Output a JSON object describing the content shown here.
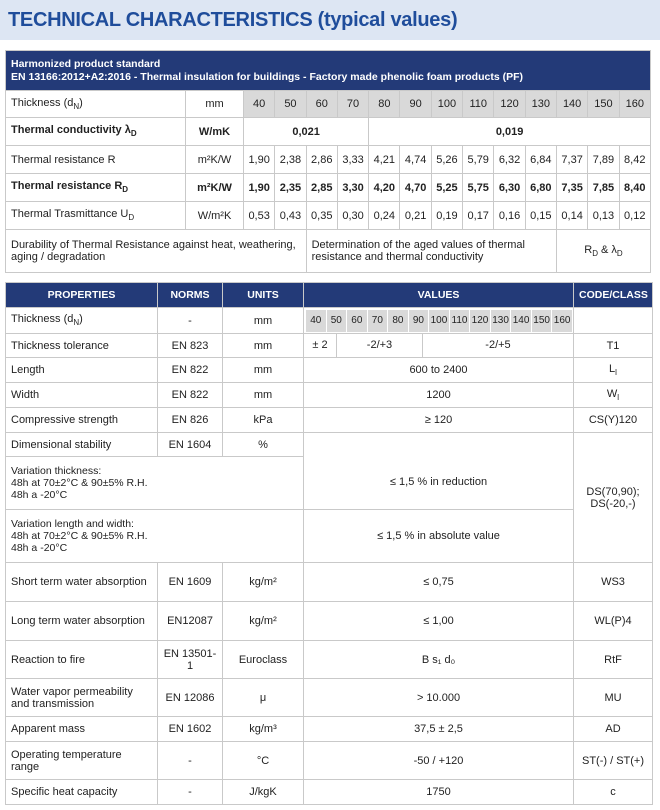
{
  "header": {
    "title": "TECHNICAL CHARACTERISTICS (typical values)"
  },
  "standard": {
    "line1": "Harmonized product standard",
    "line2": "EN 13166:2012+A2:2016 - Thermal insulation for buildings - Factory made phenolic foam products (PF)"
  },
  "thermal_table": {
    "thickness": {
      "label": [
        "Thickness (d",
        "N",
        ")"
      ],
      "unit": "mm",
      "values": [
        "40",
        "50",
        "60",
        "70",
        "80",
        "90",
        "100",
        "110",
        "120",
        "130",
        "140",
        "150",
        "160"
      ]
    },
    "conductivity": {
      "label": [
        "Thermal conductivity λ",
        "D"
      ],
      "unit": "W/mK",
      "values": [
        "0,021",
        "0,019"
      ]
    },
    "resistance": {
      "label": "Thermal resistance R",
      "unit": "m²K/W",
      "values": [
        "1,90",
        "2,38",
        "2,86",
        "3,33",
        "4,21",
        "4,74",
        "5,26",
        "5,79",
        "6,32",
        "6,84",
        "7,37",
        "7,89",
        "8,42"
      ]
    },
    "resistance_d": {
      "label": [
        "Thermal resistance R",
        "D"
      ],
      "unit": "m²K/W",
      "values": [
        "1,90",
        "2,35",
        "2,85",
        "3,30",
        "4,20",
        "4,70",
        "5,25",
        "5,75",
        "6,30",
        "6,80",
        "7,35",
        "7,85",
        "8,40"
      ]
    },
    "transmittance": {
      "label": [
        "Thermal Trasmittance U",
        "D"
      ],
      "unit": "W/m²K",
      "values": [
        "0,53",
        "0,43",
        "0,35",
        "0,30",
        "0,24",
        "0,21",
        "0,19",
        "0,17",
        "0,16",
        "0,15",
        "0,14",
        "0,13",
        "0,12"
      ]
    },
    "durability": {
      "label": "Durability of Thermal Resistance against heat, weathering, aging / degradation",
      "method": "Determination of the aged values of thermal resistance and thermal conductivity",
      "symbol": [
        "R",
        "D",
        " & λ",
        "D"
      ]
    }
  },
  "properties_table": {
    "columns": [
      "PROPERTIES",
      "NORMS",
      "UNITS",
      "VALUES",
      "CODE/CLASS"
    ],
    "rows": [
      {
        "property": [
          "Thickness (d",
          "N",
          ")"
        ],
        "norm": "-",
        "unit": "mm",
        "values": [
          "40",
          "50",
          "60",
          "70",
          "80",
          "90",
          "100",
          "110",
          "120",
          "130",
          "140",
          "150",
          "160"
        ]
      },
      {
        "property": "Thickness tolerance",
        "norm": "EN 823",
        "unit": "mm",
        "values": [
          "± 2",
          "-2/+3",
          "-2/+5"
        ],
        "code": "T1"
      },
      {
        "property": "Length",
        "norm": "EN 822",
        "unit": "mm",
        "value": "600 to 2400",
        "code": [
          "L",
          "l"
        ]
      },
      {
        "property": "Width",
        "norm": "EN 822",
        "unit": "mm",
        "value": "1200",
        "code": [
          "W",
          "l"
        ]
      },
      {
        "property": "Compressive strength",
        "norm": "EN 826",
        "unit": "kPa",
        "value": "≥ 120",
        "code": "CS(Y)120"
      },
      {
        "property": "Dimensional stability",
        "norm": "EN 1604",
        "unit": "%",
        "code": [
          "DS(70,90);",
          "DS(-20,-)"
        ]
      },
      {
        "property": [
          "Variation thickness:",
          "48h at 70±2°C & 90±5% R.H.",
          "48h a -20°C"
        ],
        "value": "≤ 1,5 % in reduction"
      },
      {
        "property": [
          "Variation length and width:",
          "48h at 70±2°C & 90±5% R.H.",
          "48h a -20°C"
        ],
        "value": "≤ 1,5 % in absolute value"
      },
      {
        "property": "Short term water absorption",
        "norm": "EN 1609",
        "unit": "kg/m²",
        "value": "≤ 0,75",
        "code": "WS3"
      },
      {
        "property": "Long term water absorption",
        "norm": "EN12087",
        "unit": "kg/m²",
        "value": "≤ 1,00",
        "code": "WL(P)4"
      },
      {
        "property": "Reaction to fire",
        "norm": "EN 13501-1",
        "unit": "Euroclass",
        "value": "B s₁ d₀",
        "code": "RtF"
      },
      {
        "property": "Water vapor permeability and transmission",
        "norm": "EN 12086",
        "unit": "μ",
        "value": "> 10.000",
        "code": "MU"
      },
      {
        "property": "Apparent mass",
        "norm": "EN 1602",
        "unit": "kg/m³",
        "value": "37,5 ± 2,5",
        "code": "AD"
      },
      {
        "property": "Operating temperature range",
        "norm": "-",
        "unit": "°C",
        "value": "-50 / +120",
        "code": "ST(-) / ST(+)"
      },
      {
        "property": "Specific heat capacity",
        "norm": "-",
        "unit": "J/kgK",
        "value": "1750",
        "code": "c"
      }
    ]
  }
}
